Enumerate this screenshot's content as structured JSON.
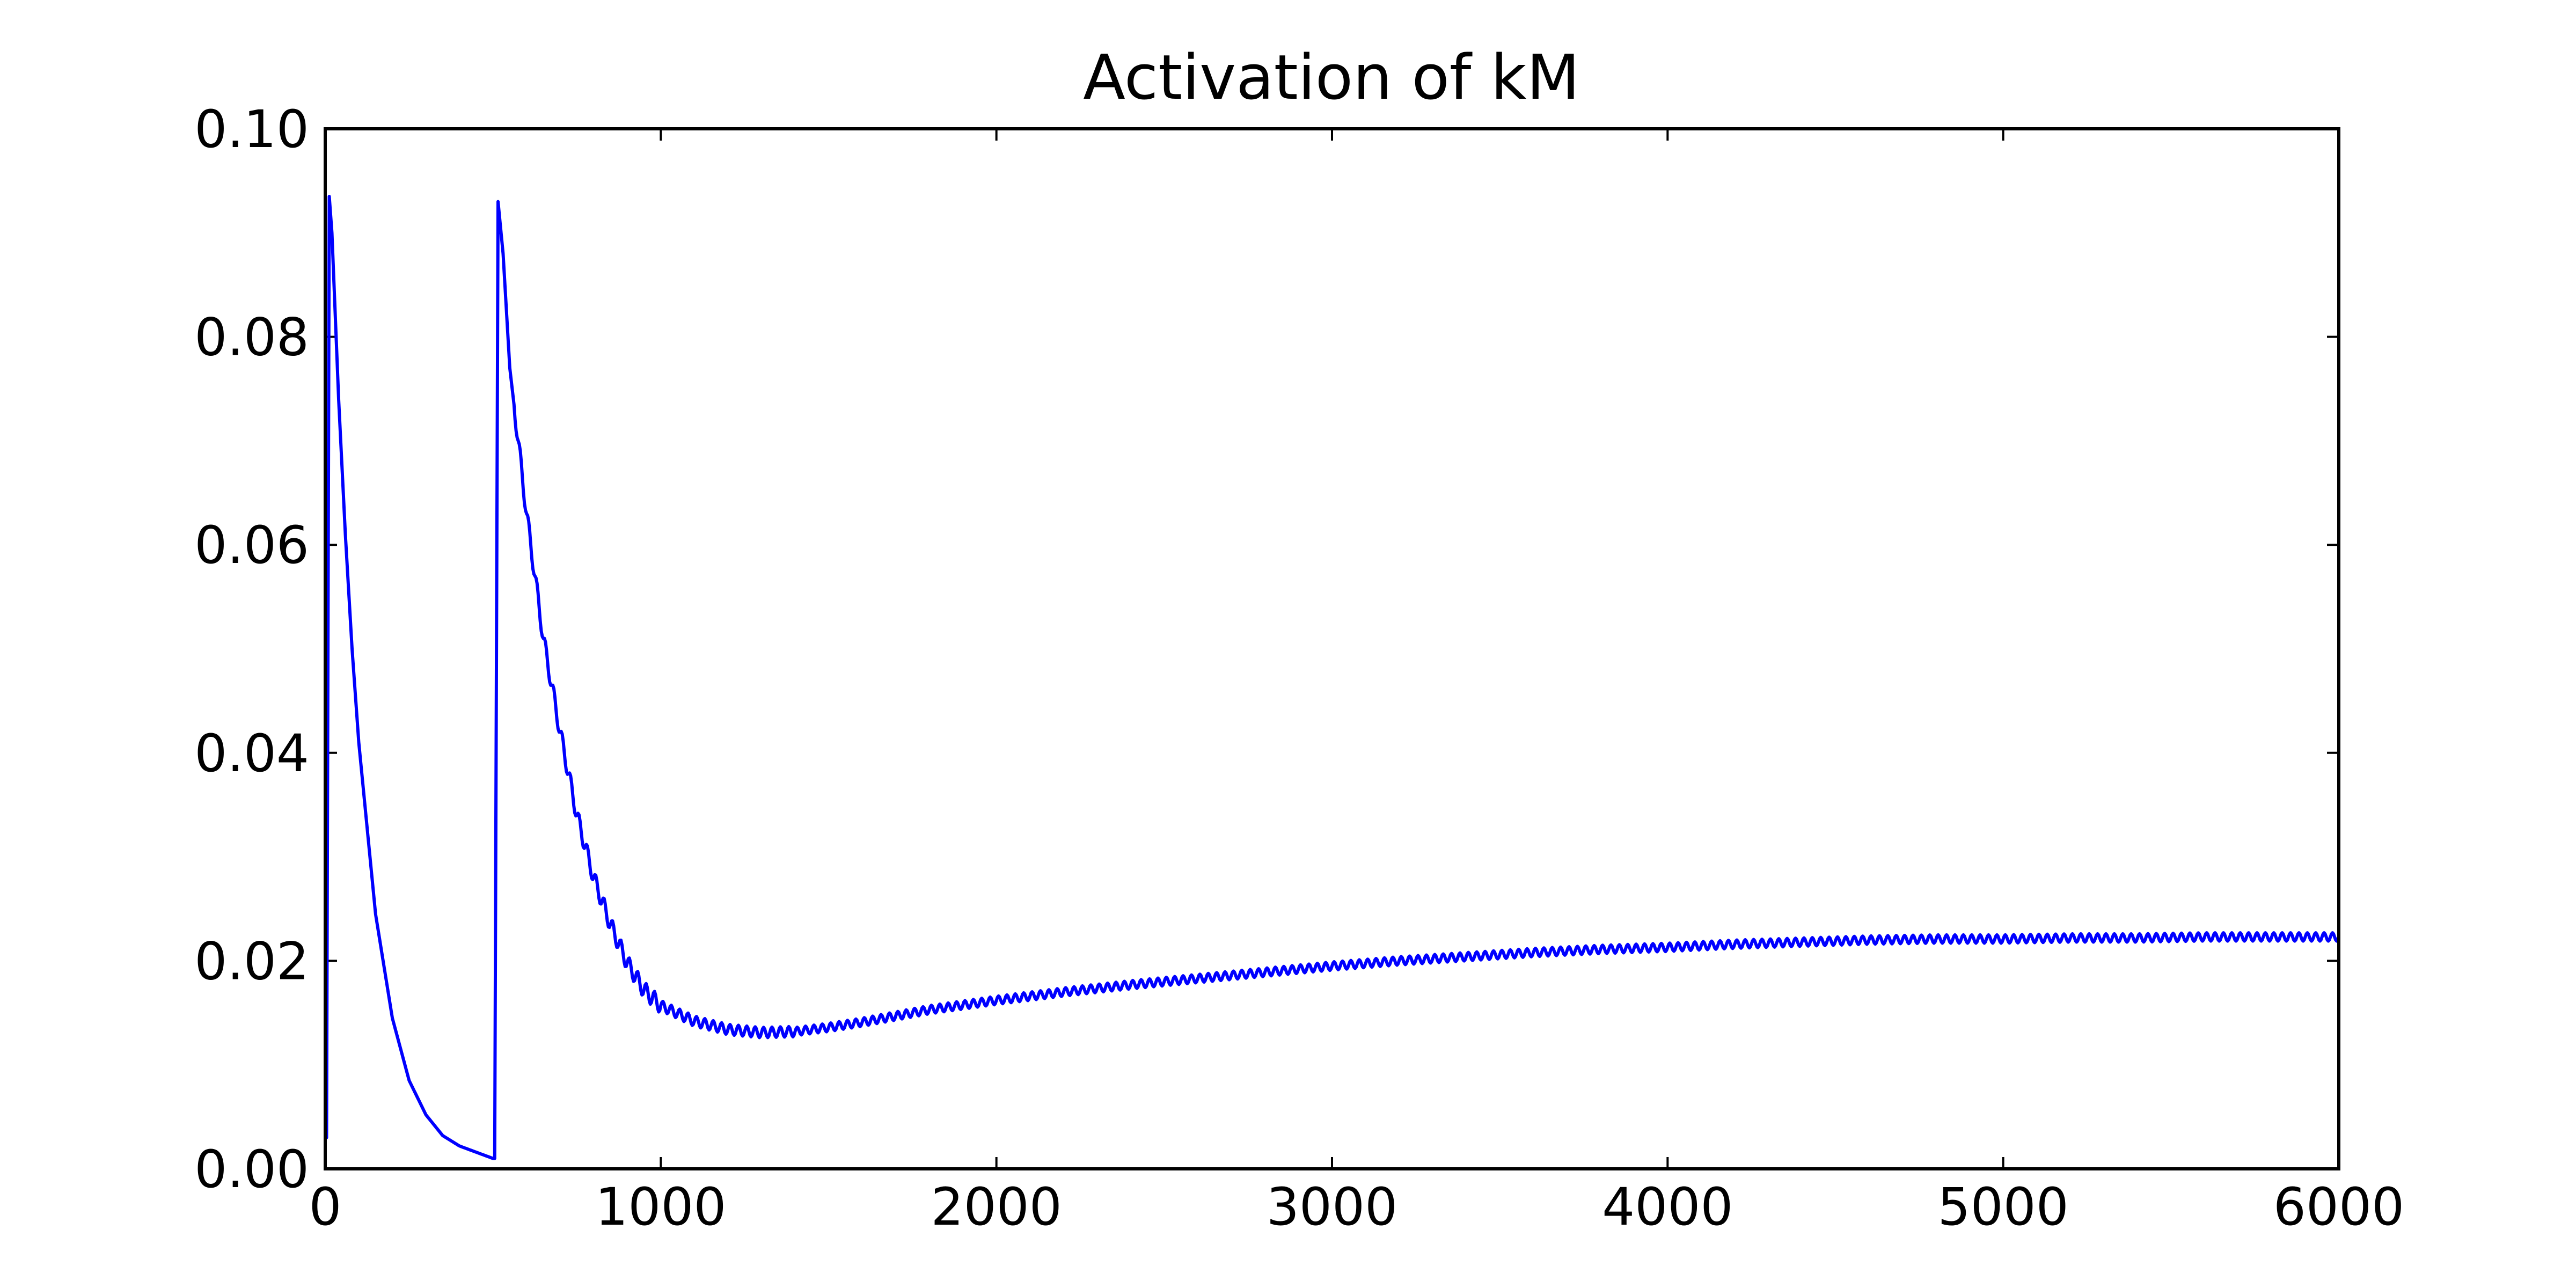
{
  "chart_data": {
    "type": "line",
    "title": "Activation of kM",
    "xlabel": "",
    "ylabel": "",
    "xlim": [
      0,
      6000
    ],
    "ylim": [
      0.0,
      0.1
    ],
    "x_ticks": [
      0,
      1000,
      2000,
      3000,
      4000,
      5000,
      6000
    ],
    "x_tick_labels": [
      "0",
      "1000",
      "2000",
      "3000",
      "4000",
      "5000",
      "6000"
    ],
    "y_ticks": [
      0.0,
      0.02,
      0.04,
      0.06,
      0.08,
      0.1
    ],
    "y_tick_labels": [
      "0.00",
      "0.02",
      "0.04",
      "0.06",
      "0.08",
      "0.10"
    ],
    "grid": false,
    "series": [
      {
        "color": "#0000ff",
        "oscillation_period": 25,
        "points": [
          [
            0,
            0.003
          ],
          [
            4,
            0.003
          ],
          [
            12,
            0.0935
          ],
          [
            20,
            0.09
          ],
          [
            40,
            0.074
          ],
          [
            60,
            0.061
          ],
          [
            80,
            0.05
          ],
          [
            100,
            0.041
          ],
          [
            150,
            0.0245
          ],
          [
            200,
            0.0145
          ],
          [
            250,
            0.0085
          ],
          [
            300,
            0.0052
          ],
          [
            350,
            0.0032
          ],
          [
            400,
            0.0022
          ],
          [
            450,
            0.0016
          ],
          [
            500,
            0.001
          ],
          [
            505,
            0.001
          ],
          [
            515,
            0.093
          ],
          [
            530,
            0.088
          ],
          [
            550,
            0.077
          ],
          [
            600,
            0.063
          ],
          [
            650,
            0.051
          ],
          [
            700,
            0.042
          ],
          [
            750,
            0.034
          ],
          [
            800,
            0.028
          ],
          [
            850,
            0.0235
          ],
          [
            900,
            0.0198
          ],
          [
            950,
            0.0172
          ],
          [
            1000,
            0.0157
          ],
          [
            1100,
            0.0142
          ],
          [
            1200,
            0.0134
          ],
          [
            1300,
            0.0131
          ],
          [
            1400,
            0.0132
          ],
          [
            1500,
            0.0136
          ],
          [
            1600,
            0.0141
          ],
          [
            1700,
            0.0147
          ],
          [
            1800,
            0.0153
          ],
          [
            2000,
            0.0162
          ],
          [
            2200,
            0.017
          ],
          [
            2400,
            0.0177
          ],
          [
            2600,
            0.0183
          ],
          [
            2800,
            0.0189
          ],
          [
            3000,
            0.0195
          ],
          [
            3200,
            0.02
          ],
          [
            3400,
            0.0204
          ],
          [
            3600,
            0.0208
          ],
          [
            3800,
            0.0211
          ],
          [
            4000,
            0.0213
          ],
          [
            4200,
            0.0216
          ],
          [
            4400,
            0.0218
          ],
          [
            4600,
            0.022
          ],
          [
            4800,
            0.0221
          ],
          [
            5000,
            0.0221
          ],
          [
            5200,
            0.0222
          ],
          [
            5400,
            0.0222
          ],
          [
            5600,
            0.0223
          ],
          [
            5800,
            0.0223
          ],
          [
            6000,
            0.0223
          ]
        ]
      }
    ]
  }
}
